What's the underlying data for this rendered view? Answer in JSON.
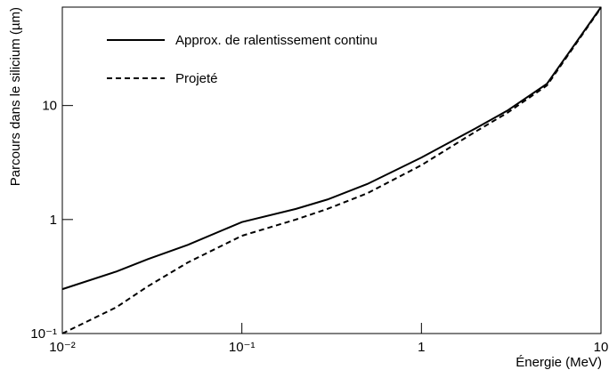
{
  "chart_data": {
    "type": "line",
    "xlabel": "Énergie (MeV)",
    "ylabel": "Parcours dans le silicium (µm)",
    "xscale": "log",
    "yscale": "log",
    "xlim": [
      0.01,
      10
    ],
    "ylim": [
      0.1,
      73
    ],
    "xticks": [
      {
        "value": 0.01,
        "label": "10⁻²"
      },
      {
        "value": 0.1,
        "label": "10⁻¹"
      },
      1,
      10
    ],
    "yticks": [
      {
        "value": 0.1,
        "label": "10⁻¹"
      },
      1,
      10
    ],
    "legend": "top-left",
    "x": [
      0.01,
      0.02,
      0.03,
      0.05,
      0.1,
      0.2,
      0.3,
      0.5,
      1,
      2,
      3,
      5,
      10
    ],
    "series": [
      {
        "name": "Approx. de ralentissement continu",
        "color": "#000000",
        "dash": "solid",
        "values": [
          0.245,
          0.35,
          0.45,
          0.6,
          0.95,
          1.24,
          1.5,
          2.05,
          3.5,
          6.3,
          9,
          15.5,
          73
        ]
      },
      {
        "name": "Projeté",
        "color": "#000000",
        "dash": "dashed",
        "values": [
          0.1,
          0.17,
          0.26,
          0.42,
          0.72,
          1.0,
          1.24,
          1.7,
          3.0,
          5.9,
          8.6,
          15,
          72
        ]
      }
    ]
  }
}
